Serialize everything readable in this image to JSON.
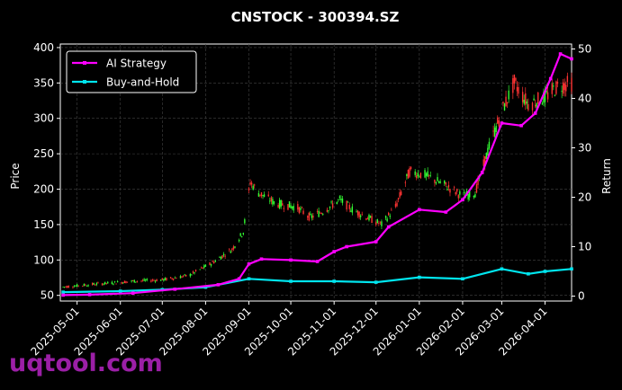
{
  "chart_data": {
    "type": "candlestick-line",
    "title": "CNSTOCK - 300394.SZ",
    "ylabel_left": "Price",
    "ylabel_right": "Return",
    "ylim_left": [
      42,
      405
    ],
    "ylim_right": [
      -1,
      51
    ],
    "yticks_left": [
      "50",
      "100",
      "150",
      "200",
      "250",
      "300",
      "350",
      "400"
    ],
    "yticks_right": [
      "0",
      "10",
      "20",
      "30",
      "40",
      "50"
    ],
    "xlim": [
      "2025-04-19",
      "2026-04-20"
    ],
    "xticks": [
      "2025-05-01",
      "2025-06-01",
      "2025-07-01",
      "2025-08-01",
      "2025-09-01",
      "2025-10-01",
      "2025-11-01",
      "2025-12-01",
      "2026-01-01",
      "2026-02-01",
      "2026-03-01",
      "2026-04-01"
    ],
    "grid": true,
    "legend": {
      "position": "top-left",
      "entries": [
        "AI Strategy",
        "Buy-and-Hold"
      ]
    },
    "colors": {
      "ai_strategy": "#ff00ff",
      "buy_and_hold": "#00e5ee",
      "up": "#33ff33",
      "down": "#ff3333",
      "grid": "#444444",
      "text": "#ffffff"
    },
    "price_path": [
      [
        "2025-04-21",
        62
      ],
      [
        "2025-05-15",
        66
      ],
      [
        "2025-06-10",
        70
      ],
      [
        "2025-07-01",
        72
      ],
      [
        "2025-07-20",
        78
      ],
      [
        "2025-08-05",
        95
      ],
      [
        "2025-08-20",
        115
      ],
      [
        "2025-08-28",
        140
      ],
      [
        "2025-09-02",
        210
      ],
      [
        "2025-09-08",
        195
      ],
      [
        "2025-09-20",
        180
      ],
      [
        "2025-10-05",
        175
      ],
      [
        "2025-10-15",
        160
      ],
      [
        "2025-10-25",
        170
      ],
      [
        "2025-11-05",
        185
      ],
      [
        "2025-11-15",
        170
      ],
      [
        "2025-11-25",
        160
      ],
      [
        "2025-12-05",
        150
      ],
      [
        "2025-12-15",
        175
      ],
      [
        "2025-12-25",
        225
      ],
      [
        "2026-01-05",
        220
      ],
      [
        "2026-01-20",
        205
      ],
      [
        "2026-02-01",
        190
      ],
      [
        "2026-02-10",
        195
      ],
      [
        "2026-02-20",
        260
      ],
      [
        "2026-03-01",
        310
      ],
      [
        "2026-03-10",
        350
      ],
      [
        "2026-03-20",
        320
      ],
      [
        "2026-04-01",
        330
      ],
      [
        "2026-04-10",
        345
      ],
      [
        "2026-04-20",
        350
      ]
    ],
    "ai_strategy": [
      [
        "2025-04-21",
        0.2
      ],
      [
        "2025-05-10",
        0.3
      ],
      [
        "2025-06-10",
        0.6
      ],
      [
        "2025-07-10",
        1.4
      ],
      [
        "2025-08-10",
        2.3
      ],
      [
        "2025-08-25",
        3.5
      ],
      [
        "2025-09-01",
        6.5
      ],
      [
        "2025-09-10",
        7.5
      ],
      [
        "2025-10-01",
        7.3
      ],
      [
        "2025-10-20",
        7.0
      ],
      [
        "2025-11-01",
        9.0
      ],
      [
        "2025-11-10",
        10.0
      ],
      [
        "2025-12-01",
        11.0
      ],
      [
        "2025-12-10",
        14.0
      ],
      [
        "2026-01-01",
        17.5
      ],
      [
        "2026-01-20",
        17.0
      ],
      [
        "2026-02-01",
        19.5
      ],
      [
        "2026-02-15",
        25.0
      ],
      [
        "2026-03-01",
        35.0
      ],
      [
        "2026-03-15",
        34.5
      ],
      [
        "2026-03-25",
        37.0
      ],
      [
        "2026-04-05",
        44.0
      ],
      [
        "2026-04-12",
        49.0
      ],
      [
        "2026-04-20",
        48.0
      ]
    ],
    "buy_and_hold": [
      [
        "2025-04-21",
        0.8
      ],
      [
        "2025-06-01",
        1.0
      ],
      [
        "2025-07-01",
        1.3
      ],
      [
        "2025-08-01",
        1.8
      ],
      [
        "2025-09-01",
        3.5
      ],
      [
        "2025-10-01",
        3.0
      ],
      [
        "2025-11-01",
        3.0
      ],
      [
        "2025-12-01",
        2.8
      ],
      [
        "2026-01-01",
        3.8
      ],
      [
        "2026-02-01",
        3.5
      ],
      [
        "2026-03-01",
        5.5
      ],
      [
        "2026-03-20",
        4.5
      ],
      [
        "2026-04-01",
        5.0
      ],
      [
        "2026-04-20",
        5.5
      ]
    ]
  },
  "watermark": "uqtool.com"
}
